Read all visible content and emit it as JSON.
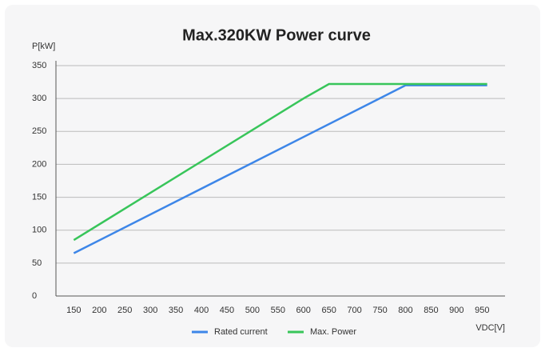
{
  "chart_data": {
    "type": "line",
    "title": "Max.320KW Power curve",
    "y_label": "P[kW]",
    "x_label": "VDC[V]",
    "series": [
      {
        "name": "Rated current",
        "color": "#3d86e8",
        "x": [
          150,
          800,
          960
        ],
        "values": [
          65,
          320,
          320
        ]
      },
      {
        "name": "Max. Power",
        "color": "#38c55a",
        "x": [
          150,
          600,
          650,
          960
        ],
        "values": [
          85,
          300,
          322,
          322
        ]
      }
    ],
    "xlim": [
      115,
      995
    ],
    "xticks": [
      150,
      200,
      250,
      300,
      350,
      400,
      450,
      500,
      550,
      600,
      650,
      700,
      750,
      800,
      850,
      900,
      950
    ],
    "ylim": [
      0,
      350
    ],
    "yticks": [
      0,
      50,
      100,
      150,
      200,
      250,
      300,
      350
    ],
    "grid": true,
    "legend": "bottom"
  }
}
